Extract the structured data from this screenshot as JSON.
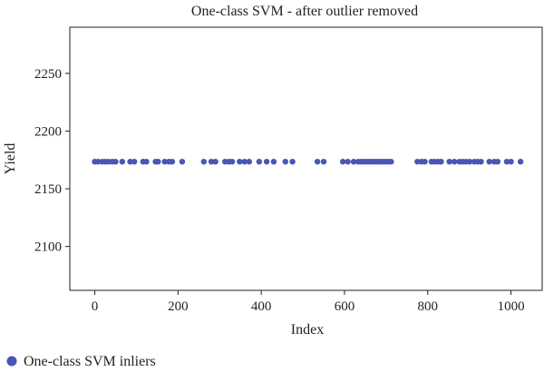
{
  "chart_data": {
    "type": "scatter",
    "title": "One-class SVM - after outlier removed",
    "xlabel": "Index",
    "ylabel": "Yield",
    "xlim": [
      -60,
      1075
    ],
    "ylim": [
      2062,
      2290
    ],
    "x_ticks": [
      0,
      200,
      400,
      600,
      800,
      1000
    ],
    "y_ticks": [
      2100,
      2150,
      2200,
      2250
    ],
    "grid": false,
    "legend_position": "bottom-left",
    "series": [
      {
        "name": "One-class SVM inliers",
        "color": "#4a55b5",
        "points": [
          {
            "x": 0,
            "y": 2173.5
          },
          {
            "x": 8,
            "y": 2173.5
          },
          {
            "x": 18,
            "y": 2173.5
          },
          {
            "x": 25,
            "y": 2173.5
          },
          {
            "x": 33,
            "y": 2173.5
          },
          {
            "x": 42,
            "y": 2173.5
          },
          {
            "x": 50,
            "y": 2173.5
          },
          {
            "x": 66,
            "y": 2173.5
          },
          {
            "x": 85,
            "y": 2173.5
          },
          {
            "x": 95,
            "y": 2173.5
          },
          {
            "x": 116,
            "y": 2173.5
          },
          {
            "x": 124,
            "y": 2173.5
          },
          {
            "x": 146,
            "y": 2173.5
          },
          {
            "x": 152,
            "y": 2173.5
          },
          {
            "x": 168,
            "y": 2173.5
          },
          {
            "x": 178,
            "y": 2173.5
          },
          {
            "x": 186,
            "y": 2173.5
          },
          {
            "x": 210,
            "y": 2173.5
          },
          {
            "x": 262,
            "y": 2173.5
          },
          {
            "x": 280,
            "y": 2173.5
          },
          {
            "x": 290,
            "y": 2173.5
          },
          {
            "x": 313,
            "y": 2173.5
          },
          {
            "x": 322,
            "y": 2173.5
          },
          {
            "x": 330,
            "y": 2173.5
          },
          {
            "x": 348,
            "y": 2173.5
          },
          {
            "x": 360,
            "y": 2173.5
          },
          {
            "x": 371,
            "y": 2173.5
          },
          {
            "x": 395,
            "y": 2173.5
          },
          {
            "x": 413,
            "y": 2173.5
          },
          {
            "x": 430,
            "y": 2173.5
          },
          {
            "x": 458,
            "y": 2173.5
          },
          {
            "x": 475,
            "y": 2173.5
          },
          {
            "x": 535,
            "y": 2173.5
          },
          {
            "x": 550,
            "y": 2173.5
          },
          {
            "x": 596,
            "y": 2173.5
          },
          {
            "x": 608,
            "y": 2173.5
          },
          {
            "x": 622,
            "y": 2173.5
          },
          {
            "x": 633,
            "y": 2173.5
          },
          {
            "x": 640,
            "y": 2173.5
          },
          {
            "x": 646,
            "y": 2173.5
          },
          {
            "x": 652,
            "y": 2173.5
          },
          {
            "x": 658,
            "y": 2173.5
          },
          {
            "x": 664,
            "y": 2173.5
          },
          {
            "x": 670,
            "y": 2173.5
          },
          {
            "x": 676,
            "y": 2173.5
          },
          {
            "x": 682,
            "y": 2173.5
          },
          {
            "x": 688,
            "y": 2173.5
          },
          {
            "x": 694,
            "y": 2173.5
          },
          {
            "x": 700,
            "y": 2173.5
          },
          {
            "x": 706,
            "y": 2173.5
          },
          {
            "x": 712,
            "y": 2173.5
          },
          {
            "x": 775,
            "y": 2173.5
          },
          {
            "x": 785,
            "y": 2173.5
          },
          {
            "x": 793,
            "y": 2173.5
          },
          {
            "x": 809,
            "y": 2173.5
          },
          {
            "x": 816,
            "y": 2173.5
          },
          {
            "x": 824,
            "y": 2173.5
          },
          {
            "x": 832,
            "y": 2173.5
          },
          {
            "x": 852,
            "y": 2173.5
          },
          {
            "x": 864,
            "y": 2173.5
          },
          {
            "x": 876,
            "y": 2173.5
          },
          {
            "x": 884,
            "y": 2173.5
          },
          {
            "x": 892,
            "y": 2173.5
          },
          {
            "x": 901,
            "y": 2173.5
          },
          {
            "x": 912,
            "y": 2173.5
          },
          {
            "x": 920,
            "y": 2173.5
          },
          {
            "x": 928,
            "y": 2173.5
          },
          {
            "x": 948,
            "y": 2173.5
          },
          {
            "x": 960,
            "y": 2173.5
          },
          {
            "x": 968,
            "y": 2173.5
          },
          {
            "x": 990,
            "y": 2173.5
          },
          {
            "x": 1000,
            "y": 2173.5
          },
          {
            "x": 1023,
            "y": 2173.5
          }
        ]
      }
    ]
  }
}
